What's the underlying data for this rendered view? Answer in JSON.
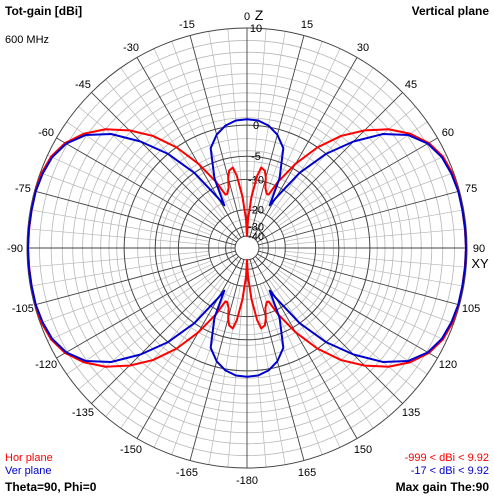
{
  "header": {
    "left_title": "Tot-gain [dBi]",
    "right_title": "Vertical plane",
    "frequency": "600 MHz"
  },
  "footer": {
    "hor_legend": "Hor plane",
    "ver_legend": "Ver plane",
    "hor_range": "-999 < dBi < 9.92",
    "ver_range": "-17 < dBi < 9.92",
    "theta_phi": "Theta=90, Phi=0",
    "max_gain": "Max gain The:90"
  },
  "colors": {
    "hor": "#ff0000",
    "ver": "#0000cc",
    "grid_major": "#444444",
    "grid_minor": "#b8b8b8",
    "text": "#000000"
  },
  "chart_data": {
    "type": "polar",
    "axis_labels": {
      "top": "Z",
      "right": "XY"
    },
    "angle_labels": [
      "0",
      "15",
      "30",
      "45",
      "60",
      "75",
      "90",
      "105",
      "120",
      "135",
      "150",
      "165",
      "-180",
      "-165",
      "-150",
      "-135",
      "-120",
      "-105",
      "-90",
      "-75",
      "-60",
      "-45",
      "-30",
      "-15"
    ],
    "angle_values": [
      0,
      15,
      30,
      45,
      60,
      75,
      90,
      105,
      120,
      135,
      150,
      165,
      180,
      -165,
      -150,
      -135,
      -120,
      -105,
      -90,
      -75,
      -60,
      -45,
      -30,
      -15
    ],
    "radial_ticks": [
      10,
      0,
      -5,
      -10,
      -20,
      -30,
      -40
    ],
    "radial_tick_labels": [
      "10",
      "0",
      "-5",
      "-10",
      "-20",
      "-30",
      "-40"
    ],
    "radial_range": [
      -40,
      10
    ],
    "series": [
      {
        "name": "Hor plane",
        "theta_deg": [
          0,
          2,
          5,
          8,
          10,
          13,
          15,
          17,
          20,
          22,
          25,
          30,
          35,
          40,
          45,
          50,
          55,
          60,
          65,
          70,
          75,
          80,
          85,
          90
        ],
        "gain_dbi": [
          -40,
          -25,
          -15,
          -9,
          -7,
          -7.5,
          -9,
          -11.5,
          -13,
          -13,
          -9,
          -4,
          0,
          3,
          5.2,
          7,
          8.3,
          9.2,
          9.7,
          9.9,
          9.92,
          9.9,
          9.9,
          9.92
        ]
      },
      {
        "name": "Ver plane",
        "theta_deg": [
          0,
          5,
          10,
          15,
          20,
          25,
          28,
          30,
          35,
          40,
          45,
          50,
          55,
          60,
          65,
          70,
          75,
          80,
          85,
          90
        ],
        "gain_dbi": [
          0.8,
          0.7,
          0.2,
          -0.8,
          -2.5,
          -8,
          -16,
          -13,
          -5,
          0,
          3.5,
          6.3,
          8.1,
          9.1,
          9.6,
          9.8,
          9.9,
          9.9,
          9.92,
          9.92
        ]
      }
    ]
  }
}
